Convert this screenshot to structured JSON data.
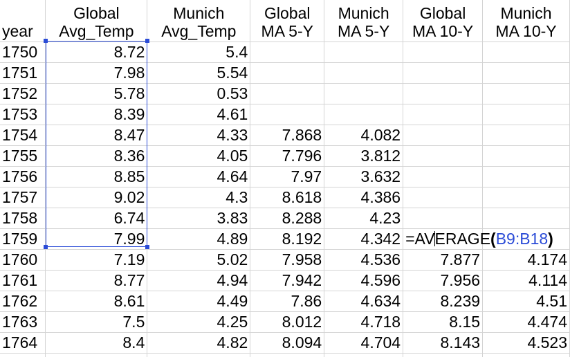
{
  "headers": [
    {
      "lines": [
        "",
        "year"
      ]
    },
    {
      "lines": [
        "Global",
        "Avg_Temp"
      ]
    },
    {
      "lines": [
        "Munich",
        "Avg_Temp"
      ]
    },
    {
      "lines": [
        "Global",
        "MA 5-Y"
      ]
    },
    {
      "lines": [
        "Munich",
        "MA 5-Y"
      ]
    },
    {
      "lines": [
        "Global",
        "MA 10-Y"
      ]
    },
    {
      "lines": [
        "Munich",
        "MA 10-Y"
      ]
    }
  ],
  "rows": [
    [
      "1750",
      "8.72",
      "5.4",
      "",
      "",
      "",
      ""
    ],
    [
      "1751",
      "7.98",
      "5.54",
      "",
      "",
      "",
      ""
    ],
    [
      "1752",
      "5.78",
      "0.53",
      "",
      "",
      "",
      ""
    ],
    [
      "1753",
      "8.39",
      "4.61",
      "",
      "",
      "",
      ""
    ],
    [
      "1754",
      "8.47",
      "4.33",
      "7.868",
      "4.082",
      "",
      ""
    ],
    [
      "1755",
      "8.36",
      "4.05",
      "7.796",
      "3.812",
      "",
      ""
    ],
    [
      "1756",
      "8.85",
      "4.64",
      "7.97",
      "3.632",
      "",
      ""
    ],
    [
      "1757",
      "9.02",
      "4.3",
      "8.618",
      "4.386",
      "",
      ""
    ],
    [
      "1758",
      "6.74",
      "3.83",
      "8.288",
      "4.23",
      "",
      ""
    ],
    [
      "1759",
      "7.99",
      "4.89",
      "8.192",
      "4.342",
      "",
      ""
    ],
    [
      "1760",
      "7.19",
      "5.02",
      "7.958",
      "4.536",
      "7.877",
      "4.174"
    ],
    [
      "1761",
      "8.77",
      "4.94",
      "7.942",
      "4.596",
      "7.956",
      "4.114"
    ],
    [
      "1762",
      "8.61",
      "4.49",
      "7.86",
      "4.634",
      "8.239",
      "4.51"
    ],
    [
      "1763",
      "7.5",
      "4.25",
      "8.012",
      "4.718",
      "8.15",
      "4.474"
    ],
    [
      "1764",
      "8.4",
      "4.82",
      "8.094",
      "4.704",
      "8.143",
      "4.523"
    ]
  ],
  "editing": {
    "row_index": 9,
    "col_index": 5,
    "formula_parts": [
      {
        "text": "=AV",
        "kind": "plain"
      },
      {
        "text": "ERAGE",
        "kind": "plain"
      },
      {
        "text": "(",
        "kind": "op"
      },
      {
        "text": "B9:B18",
        "kind": "ref"
      },
      {
        "text": ")",
        "kind": "op"
      }
    ],
    "cursor_after_part": 0
  },
  "selection_range": "B9:B18",
  "colors": {
    "reference": "#2a4bd7",
    "grid": "#d4d4d4"
  }
}
